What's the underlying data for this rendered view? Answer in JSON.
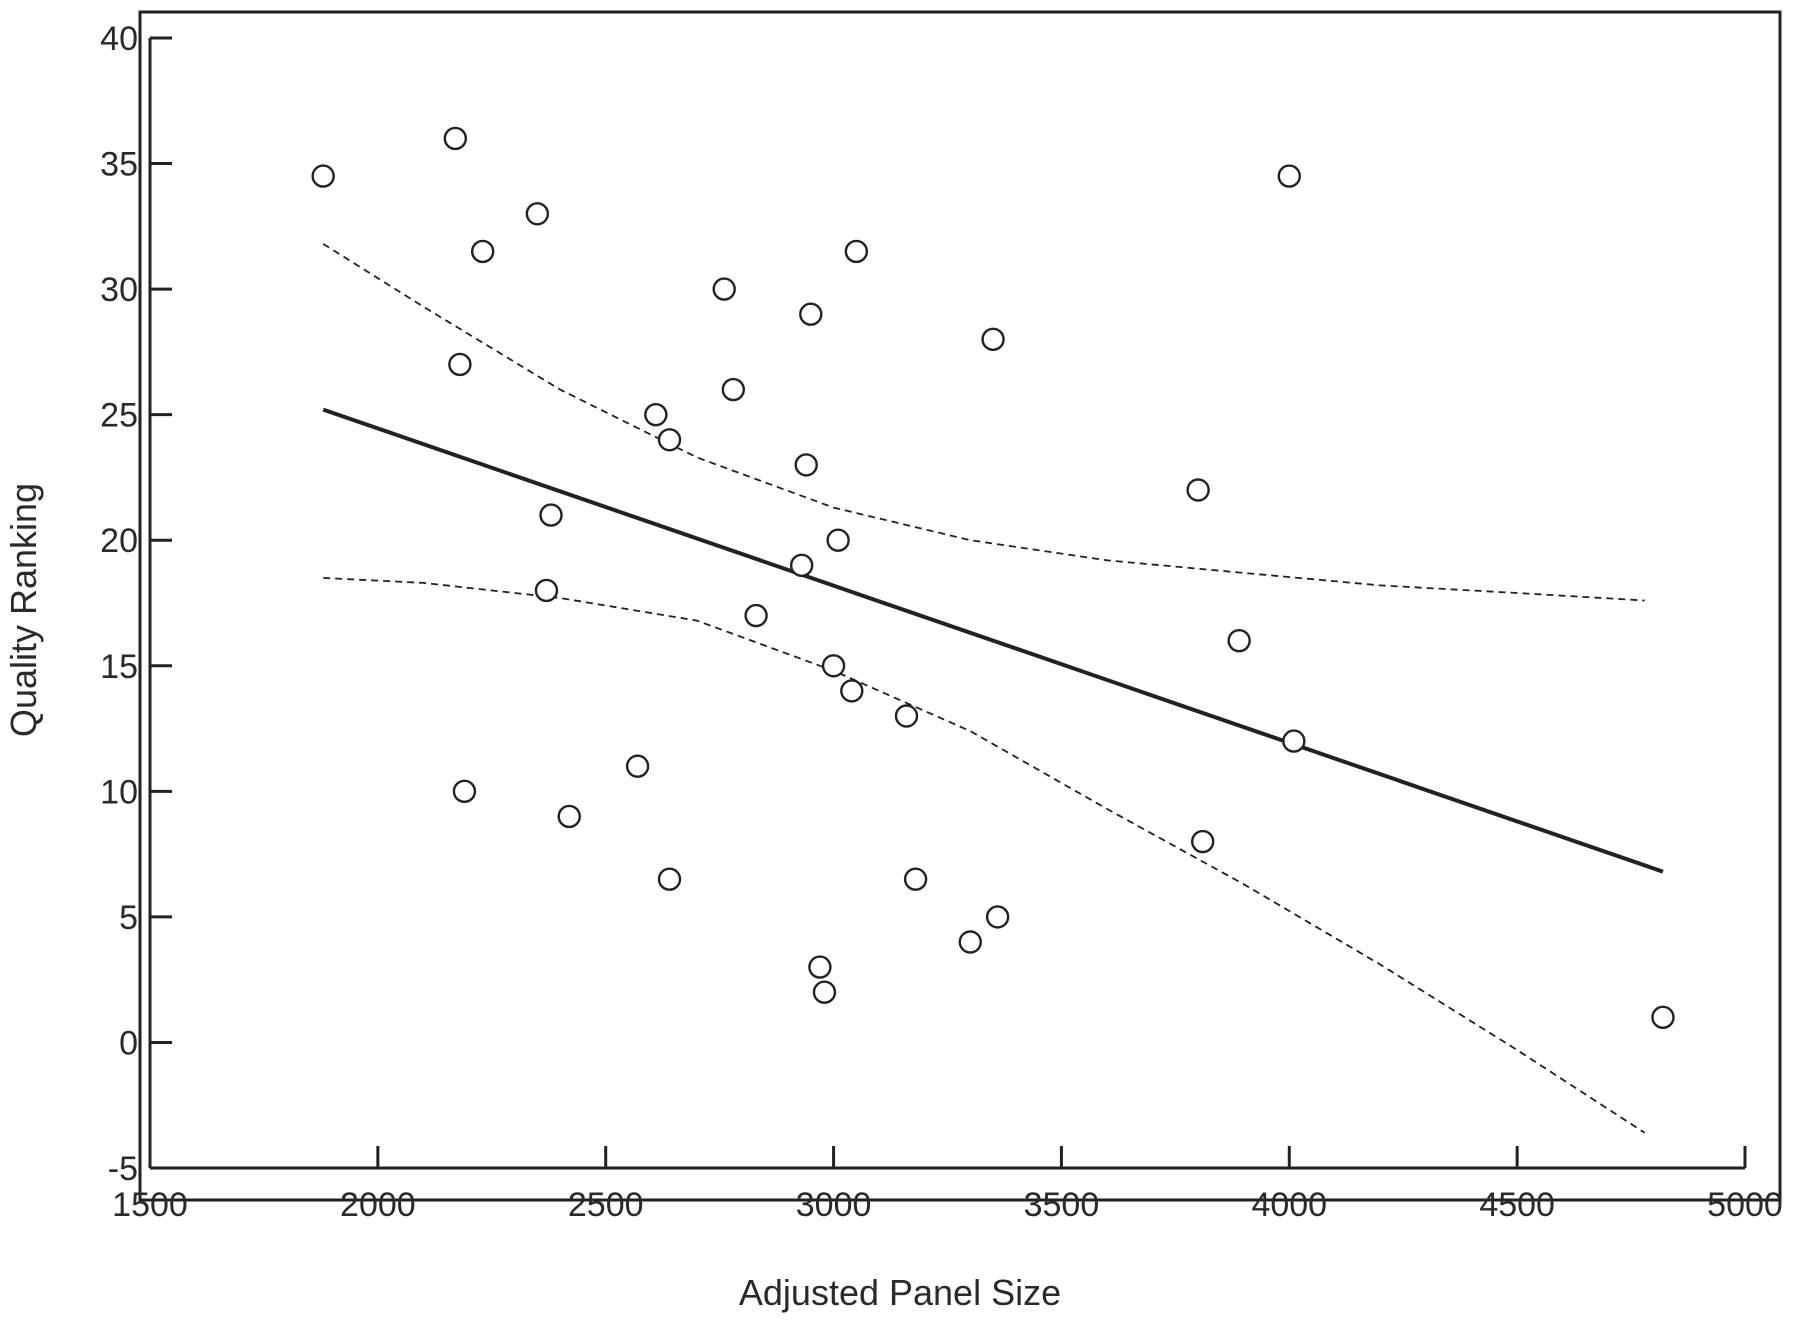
{
  "chart_data": {
    "type": "scatter",
    "title": "",
    "xlabel": "Adjusted Panel Size",
    "ylabel": "Quality Ranking",
    "xlim": [
      1500,
      5000
    ],
    "ylim": [
      -5,
      40
    ],
    "xticks": [
      1500,
      2000,
      2500,
      3000,
      3500,
      4000,
      4500,
      5000
    ],
    "yticks": [
      -5,
      0,
      5,
      10,
      15,
      20,
      25,
      30,
      35,
      40
    ],
    "grid": false,
    "legend": "none",
    "colors": {
      "ink": "#222222",
      "background": "#ffffff"
    },
    "series": [
      {
        "kind": "points",
        "marker": "open-circle",
        "points": [
          [
            1880,
            34.5
          ],
          [
            2170,
            36
          ],
          [
            2180,
            27
          ],
          [
            2190,
            10
          ],
          [
            2230,
            31.5
          ],
          [
            2350,
            33
          ],
          [
            2370,
            18
          ],
          [
            2380,
            21
          ],
          [
            2420,
            9
          ],
          [
            2570,
            11
          ],
          [
            2610,
            25
          ],
          [
            2640,
            24
          ],
          [
            2640,
            6.5
          ],
          [
            2760,
            30
          ],
          [
            2780,
            26
          ],
          [
            2830,
            17
          ],
          [
            2930,
            19
          ],
          [
            2940,
            23
          ],
          [
            2950,
            29
          ],
          [
            2970,
            3
          ],
          [
            2980,
            2
          ],
          [
            3000,
            15
          ],
          [
            3010,
            20
          ],
          [
            3040,
            14
          ],
          [
            3050,
            31.5
          ],
          [
            3160,
            13
          ],
          [
            3180,
            6.5
          ],
          [
            3300,
            4
          ],
          [
            3350,
            28
          ],
          [
            3360,
            5
          ],
          [
            3800,
            22
          ],
          [
            3810,
            8
          ],
          [
            3890,
            16
          ],
          [
            4000,
            34.5
          ],
          [
            4010,
            12
          ],
          [
            4820,
            1
          ]
        ]
      },
      {
        "kind": "fit",
        "style": "solid",
        "x": [
          1880,
          4820
        ],
        "y": [
          25.2,
          6.8
        ]
      },
      {
        "kind": "upper-band",
        "style": "dashed",
        "x": [
          1880,
          2100,
          2400,
          2700,
          3000,
          3300,
          3600,
          3900,
          4200,
          4500,
          4780
        ],
        "y": [
          31.8,
          29.3,
          26,
          23.3,
          21.3,
          20,
          19.2,
          18.7,
          18.2,
          17.9,
          17.6
        ]
      },
      {
        "kind": "lower-band",
        "style": "dashed",
        "x": [
          1880,
          2100,
          2400,
          2700,
          3000,
          3300,
          3600,
          3900,
          4200,
          4500,
          4780
        ],
        "y": [
          18.5,
          18.3,
          17.7,
          16.8,
          14.8,
          12.4,
          9.3,
          6.3,
          3.1,
          -0.3,
          -3.6
        ]
      }
    ]
  }
}
